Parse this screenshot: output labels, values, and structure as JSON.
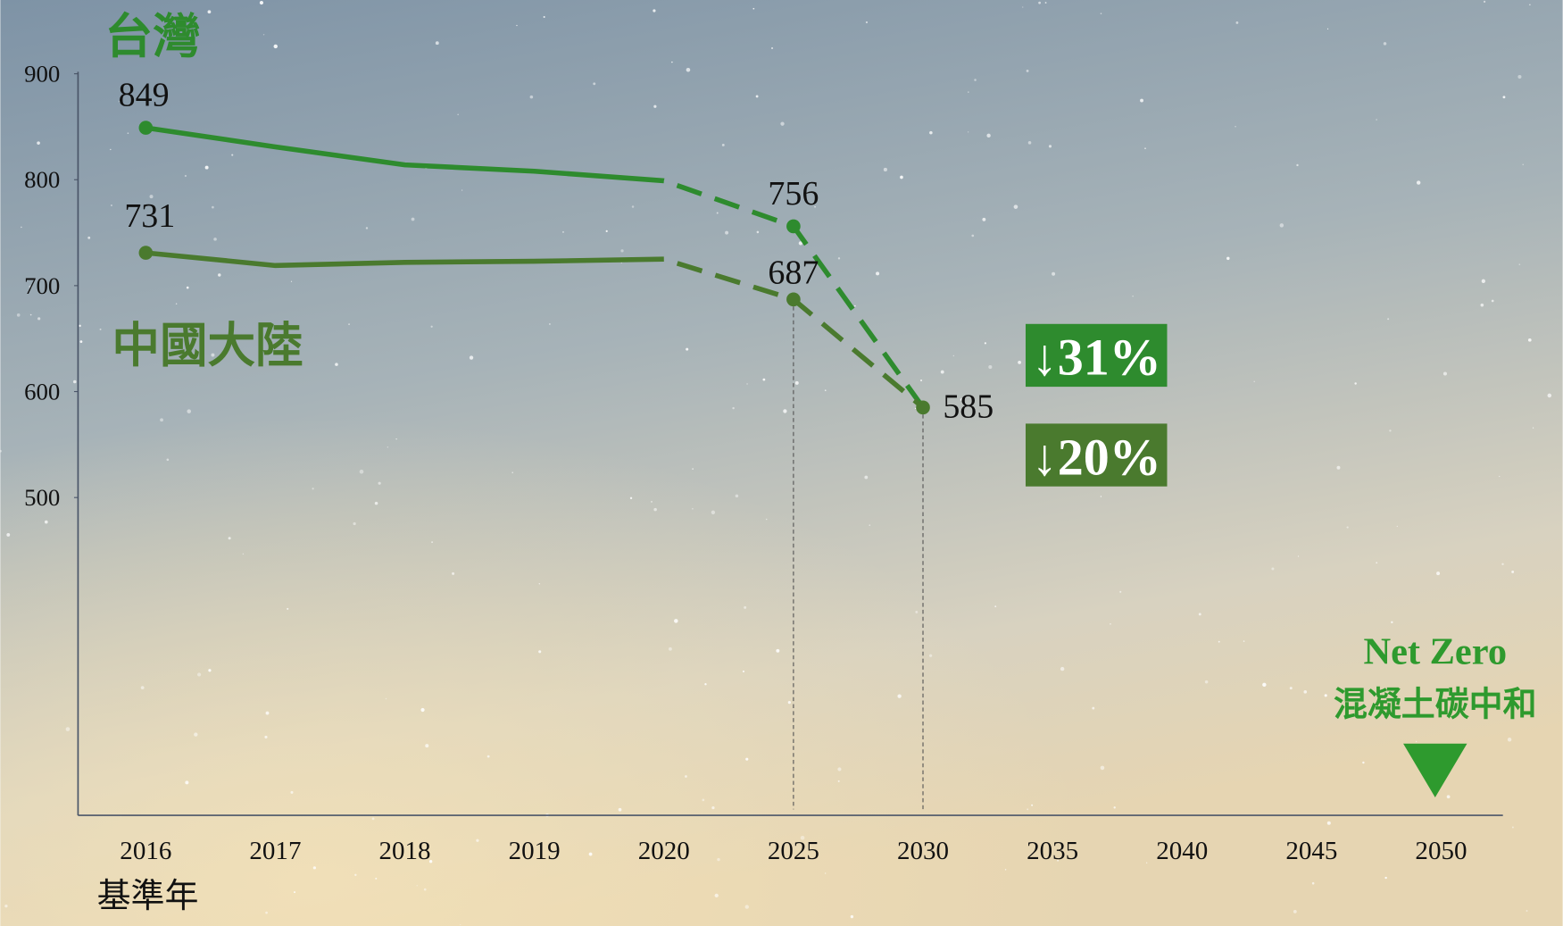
{
  "chart_data": {
    "type": "line",
    "categories": [
      "2016",
      "2017",
      "2018",
      "2019",
      "2020",
      "2025",
      "2030",
      "2035",
      "2040",
      "2045",
      "2050"
    ],
    "series": [
      {
        "name": "台灣",
        "color": "#2e8b2e",
        "values": [
          849,
          831,
          814,
          808,
          799,
          756,
          585,
          null,
          null,
          null,
          null
        ]
      },
      {
        "name": "中國大陸",
        "color": "#4a7a2e",
        "values": [
          731,
          719,
          722,
          723,
          725,
          687,
          585,
          null,
          null,
          null,
          null
        ]
      }
    ],
    "forecast_from": "2020",
    "ylim": [
      200,
      900
    ],
    "yticks": [
      900,
      800,
      700,
      600,
      500
    ],
    "x_note": "基準年",
    "annotations": [
      "↓31%",
      "↓20%",
      "Net Zero",
      "混凝土碳中和"
    ]
  }
}
